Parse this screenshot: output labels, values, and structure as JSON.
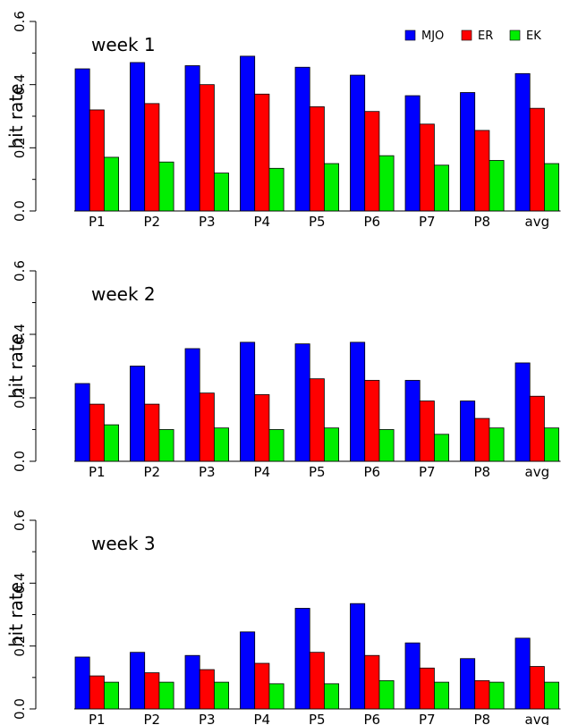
{
  "legend": [
    {
      "name": "MJO",
      "color": "#0000ff"
    },
    {
      "name": "ER",
      "color": "#ff0000"
    },
    {
      "name": "EK",
      "color": "#00ee00"
    }
  ],
  "chart_data": [
    {
      "type": "bar",
      "title": "week 1",
      "ylabel": "hit rate",
      "ylim": [
        0,
        0.6
      ],
      "yticks": [
        "0.0",
        "0.2",
        "0.4",
        "0.6"
      ],
      "categories": [
        "P1",
        "P2",
        "P3",
        "P4",
        "P5",
        "P6",
        "P7",
        "P8",
        "avg"
      ],
      "series": [
        {
          "name": "MJO",
          "values": [
            0.45,
            0.47,
            0.46,
            0.49,
            0.455,
            0.43,
            0.365,
            0.375,
            0.435
          ]
        },
        {
          "name": "ER",
          "values": [
            0.32,
            0.34,
            0.4,
            0.37,
            0.33,
            0.315,
            0.275,
            0.255,
            0.325
          ]
        },
        {
          "name": "EK",
          "values": [
            0.17,
            0.155,
            0.12,
            0.135,
            0.15,
            0.175,
            0.145,
            0.16,
            0.15
          ]
        }
      ]
    },
    {
      "type": "bar",
      "title": "week 2",
      "ylabel": "hit rate",
      "ylim": [
        0,
        0.6
      ],
      "yticks": [
        "0.0",
        "0.2",
        "0.4",
        "0.6"
      ],
      "categories": [
        "P1",
        "P2",
        "P3",
        "P4",
        "P5",
        "P6",
        "P7",
        "P8",
        "avg"
      ],
      "series": [
        {
          "name": "MJO",
          "values": [
            0.245,
            0.3,
            0.355,
            0.375,
            0.37,
            0.375,
            0.255,
            0.19,
            0.31
          ]
        },
        {
          "name": "ER",
          "values": [
            0.18,
            0.18,
            0.215,
            0.21,
            0.26,
            0.255,
            0.19,
            0.135,
            0.205
          ]
        },
        {
          "name": "EK",
          "values": [
            0.115,
            0.1,
            0.105,
            0.1,
            0.105,
            0.1,
            0.085,
            0.105,
            0.105
          ]
        }
      ]
    },
    {
      "type": "bar",
      "title": "week 3",
      "ylabel": "hit rate",
      "ylim": [
        0,
        0.6
      ],
      "yticks": [
        "0.0",
        "0.2",
        "0.4",
        "0.6"
      ],
      "categories": [
        "P1",
        "P2",
        "P3",
        "P4",
        "P5",
        "P6",
        "P7",
        "P8",
        "avg"
      ],
      "series": [
        {
          "name": "MJO",
          "values": [
            0.165,
            0.18,
            0.17,
            0.245,
            0.32,
            0.335,
            0.21,
            0.16,
            0.225
          ]
        },
        {
          "name": "ER",
          "values": [
            0.105,
            0.115,
            0.125,
            0.145,
            0.18,
            0.17,
            0.13,
            0.09,
            0.135
          ]
        },
        {
          "name": "EK",
          "values": [
            0.085,
            0.085,
            0.085,
            0.08,
            0.08,
            0.09,
            0.085,
            0.085,
            0.085
          ]
        }
      ]
    }
  ]
}
